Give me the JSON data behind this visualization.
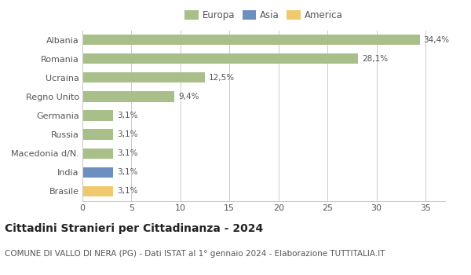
{
  "countries": [
    "Albania",
    "Romania",
    "Ucraina",
    "Regno Unito",
    "Germania",
    "Russia",
    "Macedonia d/N.",
    "India",
    "Brasile"
  ],
  "values": [
    34.4,
    28.1,
    12.5,
    9.4,
    3.1,
    3.1,
    3.1,
    3.1,
    3.1
  ],
  "labels": [
    "34,4%",
    "28,1%",
    "12,5%",
    "9,4%",
    "3,1%",
    "3,1%",
    "3,1%",
    "3,1%",
    "3,1%"
  ],
  "colors": [
    "#a8bf8a",
    "#a8bf8a",
    "#a8bf8a",
    "#a8bf8a",
    "#a8bf8a",
    "#a8bf8a",
    "#a8bf8a",
    "#6b8fbf",
    "#f0c96e"
  ],
  "legend": [
    {
      "label": "Europa",
      "color": "#a8bf8a"
    },
    {
      "label": "Asia",
      "color": "#6b8fbf"
    },
    {
      "label": "America",
      "color": "#f0c96e"
    }
  ],
  "xlim": [
    0,
    37
  ],
  "xticks": [
    0,
    5,
    10,
    15,
    20,
    25,
    30,
    35
  ],
  "title": "Cittadini Stranieri per Cittadinanza - 2024",
  "subtitle": "COMUNE DI VALLO DI NERA (PG) - Dati ISTAT al 1° gennaio 2024 - Elaborazione TUTTITALIA.IT",
  "title_fontsize": 10,
  "subtitle_fontsize": 7.5,
  "bg_color": "#ffffff",
  "grid_color": "#cccccc",
  "bar_height": 0.55,
  "label_fontsize": 7.5,
  "ytick_fontsize": 8,
  "xtick_fontsize": 8
}
